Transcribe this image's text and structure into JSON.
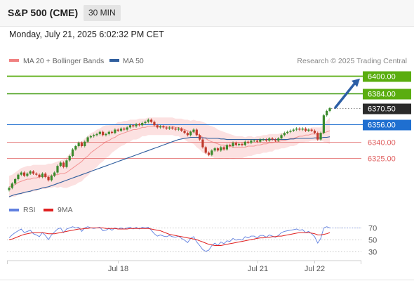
{
  "header": {
    "instrument": "S&P 500 (CME)",
    "interval": "30 MIN"
  },
  "datetime": "Monday, July 21, 2025 6:02:32 PM CET",
  "legend": {
    "bb_label": "MA 20 + Bollinger Bands",
    "ma_label": "MA 50"
  },
  "copyright": "Research © 2025 Trading Central",
  "rsi_legend": {
    "rsi_label": "RSI",
    "ma_label": "9MA"
  },
  "colors": {
    "bb": "#f08080",
    "ma50": "#2f5e9e",
    "green": "#5aad10",
    "resistance": "#3f9a0f",
    "support": "#e06060",
    "last": "#2b2b2b",
    "pivot": "#1f6fd0",
    "rsi": "#6080e0",
    "rsi_ma": "#e02020",
    "up": "#3a8a2c",
    "down": "#c0392b"
  },
  "chart_data": [
    {
      "type": "candlestick",
      "title": "S&P 500 (CME) 30 MIN",
      "x_tick_labels": [
        "Jul 18",
        "Jul 21",
        "Jul 22"
      ],
      "ylim": [
        6290,
        6405
      ],
      "levels": [
        {
          "label": "6400.00",
          "value": 6400.0,
          "kind": "target"
        },
        {
          "label": "6384.00",
          "value": 6384.0,
          "kind": "resistance"
        },
        {
          "label": "6370.50",
          "value": 6370.5,
          "kind": "last"
        },
        {
          "label": "6356.00",
          "value": 6356.0,
          "kind": "pivot"
        },
        {
          "label": "6340.00",
          "value": 6340.0,
          "kind": "support"
        },
        {
          "label": "6325.00",
          "value": 6325.0,
          "kind": "support"
        }
      ],
      "closes": [
        6298,
        6302,
        6306,
        6310,
        6312,
        6309,
        6311,
        6313,
        6311,
        6310,
        6308,
        6311,
        6308,
        6305,
        6309,
        6312,
        6318,
        6321,
        6317,
        6323,
        6327,
        6333,
        6336,
        6339,
        6336,
        6340,
        6344,
        6345,
        6346,
        6347,
        6349,
        6346,
        6347,
        6349,
        6348,
        6351,
        6350,
        6352,
        6351,
        6353,
        6355,
        6354,
        6356,
        6355,
        6357,
        6358,
        6360,
        6358,
        6355,
        6353,
        6354,
        6353,
        6352,
        6353,
        6352,
        6351,
        6352,
        6350,
        6348,
        6346,
        6349,
        6351,
        6346,
        6342,
        6335,
        6330,
        6328,
        6332,
        6334,
        6332,
        6335,
        6333,
        6337,
        6336,
        6339,
        6337,
        6338,
        6337,
        6340,
        6339,
        6341,
        6341,
        6340,
        6342,
        6342,
        6341,
        6343,
        6342,
        6341,
        6343,
        6346,
        6348,
        6349,
        6350,
        6351,
        6352,
        6351,
        6352,
        6350,
        6351,
        6350,
        6348,
        6342,
        6348,
        6364,
        6368,
        6370.5
      ],
      "ma20": [
        6299,
        6300,
        6301,
        6303,
        6304,
        6305,
        6306,
        6306,
        6307,
        6307,
        6308,
        6308,
        6308,
        6309,
        6309,
        6310,
        6310,
        6311,
        6311,
        6312,
        6314,
        6316,
        6318,
        6320,
        6322,
        6325,
        6327,
        6330,
        6332,
        6334,
        6336,
        6338,
        6340,
        6341,
        6343,
        6344,
        6346,
        6347,
        6348,
        6349,
        6350,
        6351,
        6351,
        6352,
        6353,
        6353,
        6354,
        6354,
        6354,
        6354,
        6354,
        6354,
        6354,
        6354,
        6354,
        6353,
        6353,
        6352,
        6351,
        6350,
        6349,
        6349,
        6347,
        6346,
        6344,
        6343,
        6341,
        6340,
        6339,
        6338,
        6337,
        6337,
        6336,
        6336,
        6335,
        6335,
        6335,
        6335,
        6335,
        6336,
        6336,
        6336,
        6337,
        6337,
        6338,
        6338,
        6339,
        6339,
        6340,
        6340,
        6341,
        6341,
        6342,
        6343,
        6343,
        6344,
        6345,
        6345,
        6346,
        6346,
        6347,
        6347,
        6347,
        6347,
        6348,
        6349,
        6350
      ],
      "bb_width": [
        10,
        10,
        11,
        11,
        12,
        12,
        12,
        12,
        12,
        12,
        11,
        11,
        11,
        11,
        11,
        11,
        12,
        12,
        13,
        14,
        15,
        16,
        17,
        17,
        18,
        18,
        18,
        18,
        17,
        17,
        16,
        16,
        15,
        14,
        13,
        12,
        12,
        11,
        11,
        10,
        10,
        9,
        9,
        9,
        8,
        8,
        8,
        8,
        8,
        8,
        8,
        8,
        8,
        8,
        8,
        8,
        8,
        9,
        9,
        10,
        10,
        11,
        12,
        13,
        14,
        14,
        14,
        14,
        14,
        13,
        13,
        12,
        12,
        11,
        11,
        10,
        10,
        10,
        9,
        9,
        9,
        8,
        8,
        8,
        8,
        8,
        8,
        8,
        7,
        7,
        7,
        7,
        7,
        7,
        7,
        7,
        6,
        6,
        6,
        6,
        6,
        6,
        6,
        6,
        8,
        10,
        12
      ],
      "ma50": [
        6290,
        6291,
        6292,
        6292.5,
        6293,
        6294,
        6294.5,
        6295,
        6296,
        6296.5,
        6297,
        6298,
        6298.5,
        6299,
        6300,
        6301,
        6302,
        6303,
        6304,
        6305,
        6306,
        6307,
        6308,
        6309,
        6310,
        6311,
        6312,
        6313,
        6314,
        6315,
        6316,
        6317,
        6318,
        6319,
        6320,
        6321,
        6322,
        6323,
        6324,
        6325,
        6326,
        6327,
        6328,
        6329,
        6330,
        6331,
        6332,
        6333,
        6334,
        6335,
        6336,
        6337,
        6338,
        6339,
        6340,
        6341,
        6342,
        6342.5,
        6343,
        6343.5,
        6344,
        6344,
        6344,
        6344,
        6343.5,
        6343.5,
        6343,
        6343,
        6343,
        6343,
        6342.5,
        6342.5,
        6342,
        6342,
        6342,
        6342,
        6342,
        6342,
        6342,
        6342,
        6342,
        6342,
        6342,
        6342,
        6342,
        6342,
        6342,
        6342,
        6342,
        6342,
        6342,
        6342,
        6342,
        6342.5,
        6342.5,
        6343,
        6343,
        6343,
        6343,
        6343,
        6343,
        6343.5,
        6343.5,
        6343.5,
        6344,
        6344,
        6344.5
      ],
      "forecast": {
        "from": 6370.5,
        "to": 6400.0
      }
    },
    {
      "type": "line",
      "title": "RSI",
      "ylim": [
        25,
        80
      ],
      "y_tick_labels": [
        "70",
        "50",
        "30"
      ],
      "series": [
        {
          "name": "RSI",
          "values": [
            53,
            58,
            62,
            65,
            68,
            62,
            64,
            66,
            60,
            58,
            55,
            62,
            57,
            50,
            58,
            63,
            68,
            70,
            62,
            68,
            70,
            72,
            70,
            71,
            64,
            70,
            72,
            70,
            69,
            70,
            71,
            65,
            66,
            69,
            66,
            70,
            68,
            70,
            68,
            70,
            71,
            68,
            71,
            68,
            71,
            70,
            71,
            66,
            60,
            56,
            58,
            56,
            55,
            57,
            55,
            54,
            56,
            52,
            49,
            45,
            52,
            55,
            46,
            40,
            33,
            30,
            32,
            40,
            44,
            40,
            46,
            43,
            48,
            47,
            52,
            49,
            51,
            49,
            55,
            53,
            56,
            56,
            53,
            57,
            57,
            54,
            58,
            56,
            54,
            57,
            62,
            64,
            65,
            66,
            67,
            68,
            66,
            67,
            62,
            64,
            60,
            55,
            44,
            52,
            70,
            72,
            70
          ]
        },
        {
          "name": "9MA",
          "values": [
            50,
            51,
            53,
            55,
            57,
            59,
            60,
            61,
            62,
            62,
            62,
            62,
            61,
            60,
            60,
            60,
            61,
            62,
            63,
            64,
            65,
            66,
            67,
            68,
            68,
            69,
            69,
            70,
            70,
            70,
            70,
            70,
            69,
            69,
            69,
            69,
            68,
            68,
            68,
            68,
            69,
            69,
            69,
            69,
            69,
            69,
            69,
            68,
            67,
            66,
            65,
            63,
            61,
            59,
            58,
            57,
            56,
            55,
            54,
            53,
            52,
            51,
            50,
            48,
            46,
            44,
            42,
            41,
            40,
            40,
            40,
            41,
            42,
            43,
            44,
            45,
            46,
            47,
            48,
            49,
            50,
            51,
            52,
            53,
            53,
            54,
            54,
            55,
            55,
            56,
            56,
            57,
            58,
            59,
            60,
            61,
            62,
            62,
            62,
            62,
            61,
            60,
            58,
            58,
            59,
            60,
            62
          ]
        }
      ]
    }
  ]
}
